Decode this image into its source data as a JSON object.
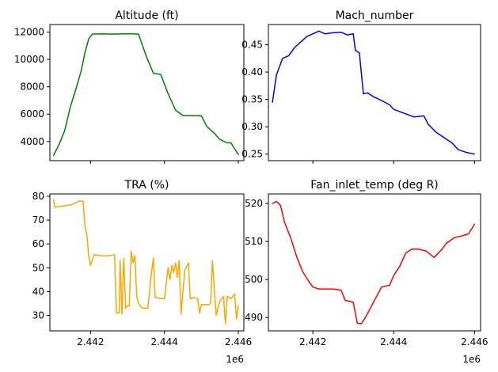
{
  "chart_data": [
    {
      "type": "line",
      "title": "Altitude (ft)",
      "xlim": [
        2440900,
        2446150
      ],
      "ylim": [
        2600,
        12550
      ],
      "xticks": [
        2442000,
        2444000,
        2446000
      ],
      "xtick_labels": [
        "",
        "",
        ""
      ],
      "yticks": [
        4000,
        6000,
        8000,
        10000,
        12000
      ],
      "ytick_labels": [
        "4000",
        "6000",
        "8000",
        "10000",
        "12000"
      ],
      "x_offset_label": "",
      "color": "#008000",
      "series": [
        {
          "x": [
            2441000,
            2441150,
            2441300,
            2441450,
            2441600,
            2441750,
            2441850,
            2441950,
            2442050,
            2442300,
            2442600,
            2442900,
            2443100,
            2443300,
            2443500,
            2443700,
            2443900,
            2444100,
            2444300,
            2444500,
            2444750,
            2445000,
            2445150,
            2445350,
            2445500,
            2445700,
            2445800,
            2446000
          ],
          "y": [
            3000,
            3800,
            4800,
            6500,
            7800,
            9200,
            10500,
            11500,
            11850,
            11870,
            11850,
            11870,
            11880,
            11850,
            10300,
            9000,
            8900,
            7500,
            6300,
            5900,
            5900,
            5880,
            5100,
            4600,
            4150,
            3900,
            3900,
            3050
          ]
        }
      ]
    },
    {
      "type": "line",
      "title": "Mach_number",
      "xlim": [
        2440900,
        2446150
      ],
      "ylim": [
        0.238,
        0.487
      ],
      "xticks": [
        2442000,
        2444000,
        2446000
      ],
      "xtick_labels": [
        "",
        "",
        ""
      ],
      "yticks": [
        0.25,
        0.3,
        0.35,
        0.4,
        0.45
      ],
      "ytick_labels": [
        "0.25",
        "0.30",
        "0.35",
        "0.40",
        "0.45"
      ],
      "x_offset_label": "",
      "color": "#0000ff",
      "series": [
        {
          "x": [
            2441000,
            2441100,
            2441250,
            2441400,
            2441550,
            2441700,
            2441850,
            2442000,
            2442150,
            2442300,
            2442500,
            2442700,
            2442850,
            2443000,
            2443050,
            2443150,
            2443250,
            2443350,
            2443500,
            2443700,
            2443900,
            2444000,
            2444250,
            2444500,
            2444750,
            2444850,
            2445050,
            2445250,
            2445450,
            2445600,
            2445800,
            2446000
          ],
          "y": [
            0.345,
            0.395,
            0.425,
            0.43,
            0.445,
            0.455,
            0.465,
            0.47,
            0.475,
            0.47,
            0.472,
            0.473,
            0.468,
            0.47,
            0.44,
            0.435,
            0.36,
            0.362,
            0.355,
            0.348,
            0.34,
            0.332,
            0.325,
            0.318,
            0.32,
            0.305,
            0.29,
            0.28,
            0.27,
            0.258,
            0.253,
            0.25
          ]
        }
      ]
    },
    {
      "type": "line",
      "title": "TRA (%)",
      "xlim": [
        2440900,
        2446150
      ],
      "ylim": [
        23.5,
        81
      ],
      "xticks": [
        2442000,
        2444000,
        2446000
      ],
      "xtick_labels": [
        "2.442",
        "2.444",
        "2.446"
      ],
      "yticks": [
        30,
        40,
        50,
        60,
        70,
        80
      ],
      "ytick_labels": [
        "30",
        "40",
        "50",
        "60",
        "70",
        "80"
      ],
      "x_offset_label": "1e6",
      "color": "#ffa500",
      "series": [
        {
          "x": [
            2441000,
            2441030,
            2441100,
            2441300,
            2441500,
            2441700,
            2441800,
            2441850,
            2441900,
            2441950,
            2442000,
            2442100,
            2442300,
            2442500,
            2442650,
            2442700,
            2442780,
            2442800,
            2442850,
            2442900,
            2442950,
            2443000,
            2443050,
            2443100,
            2443150,
            2443200,
            2443250,
            2443300,
            2443400,
            2443550,
            2443650,
            2443700,
            2443750,
            2443800,
            2443900,
            2444000,
            2444100,
            2444150,
            2444200,
            2444250,
            2444300,
            2444350,
            2444400,
            2444450,
            2444550,
            2444650,
            2444700,
            2444800,
            2444900,
            2444950,
            2445000,
            2445100,
            2445200,
            2445250,
            2445300,
            2445400,
            2445500,
            2445600,
            2445650,
            2445700,
            2445800,
            2445900,
            2445950,
            2446000
          ],
          "y": [
            78.5,
            75.5,
            75.5,
            76,
            76.5,
            78,
            78,
            67,
            64,
            55,
            51,
            55.5,
            55,
            55,
            55.5,
            31,
            31,
            53,
            30.5,
            54,
            33,
            34,
            34,
            57,
            52,
            55,
            38,
            35,
            33,
            33,
            48,
            54,
            37.5,
            37.5,
            37,
            37,
            50,
            45,
            51,
            48,
            52,
            46,
            53,
            30.5,
            49,
            52,
            37,
            37.5,
            37,
            31,
            34.5,
            34.5,
            34.5,
            35,
            53,
            30,
            36,
            38,
            26.5,
            38,
            37,
            39,
            28.5,
            34
          ]
        }
      ]
    },
    {
      "type": "line",
      "title": "Fan_inlet_temp (deg R)",
      "xlim": [
        2440900,
        2446150
      ],
      "ylim": [
        486.5,
        522.5
      ],
      "xticks": [
        2442000,
        2444000,
        2446000
      ],
      "xtick_labels": [
        "2.442",
        "2.444",
        "2.446"
      ],
      "yticks": [
        490,
        500,
        510,
        520
      ],
      "ytick_labels": [
        "490",
        "500",
        "510",
        "520"
      ],
      "x_offset_label": "1e6",
      "color": "#ff0000",
      "series": [
        {
          "x": [
            2441000,
            2441100,
            2441200,
            2441300,
            2441450,
            2441600,
            2441750,
            2441900,
            2442000,
            2442150,
            2442300,
            2442500,
            2442700,
            2442800,
            2442900,
            2443000,
            2443100,
            2443200,
            2443300,
            2443500,
            2443700,
            2443900,
            2444000,
            2444150,
            2444300,
            2444450,
            2444600,
            2444800,
            2445000,
            2445200,
            2445300,
            2445500,
            2445700,
            2445850,
            2446000
          ],
          "y": [
            520,
            520.5,
            519.5,
            515,
            511,
            506,
            502,
            499.5,
            498,
            497.5,
            497.5,
            497.5,
            497.2,
            494.5,
            494.3,
            494,
            488.5,
            488.4,
            490,
            494,
            498,
            498.5,
            501,
            503.5,
            507,
            508,
            508,
            507.5,
            505.8,
            508,
            509.5,
            511,
            511.5,
            512,
            514.5
          ]
        }
      ]
    }
  ]
}
